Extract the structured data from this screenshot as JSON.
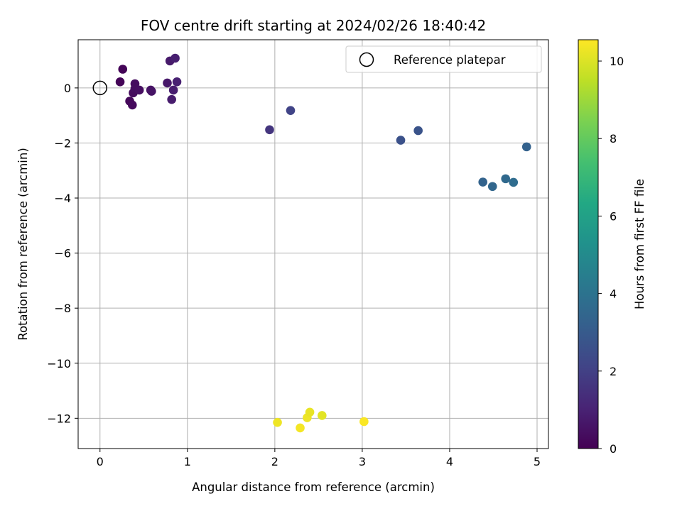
{
  "chart_data": {
    "type": "scatter",
    "title": "FOV centre drift starting at 2024/02/26 18:40:42",
    "xlabel": "Angular distance from reference (arcmin)",
    "ylabel": "Rotation from reference (arcmin)",
    "xlim": [
      -0.25,
      5.13
    ],
    "ylim": [
      -13.1,
      1.75
    ],
    "xticks": [
      0,
      1,
      2,
      3,
      4,
      5
    ],
    "yticks": [
      0,
      -2,
      -4,
      -6,
      -8,
      -10,
      -12
    ],
    "xtick_labels": [
      "0",
      "1",
      "2",
      "3",
      "4",
      "5"
    ],
    "ytick_labels": [
      "0",
      "−2",
      "−4",
      "−6",
      "−8",
      "−10",
      "−12"
    ],
    "grid": true,
    "colorbar": {
      "label": "Hours from first FF file",
      "colormap": "viridis",
      "range": [
        0,
        10.55
      ],
      "ticks": [
        0,
        2,
        4,
        6,
        8,
        10
      ],
      "tick_labels": [
        "0",
        "2",
        "4",
        "6",
        "8",
        "10"
      ]
    },
    "legend": {
      "position": "top-right",
      "entries": [
        {
          "label": "Reference platepar",
          "marker": "open-circle"
        }
      ]
    },
    "reference_point": {
      "x": 0,
      "y": 0
    },
    "points": [
      {
        "x": 0.23,
        "y": 0.22,
        "hours": 0.1
      },
      {
        "x": 0.26,
        "y": 0.68,
        "hours": 0.1
      },
      {
        "x": 0.34,
        "y": -0.48,
        "hours": 0.2
      },
      {
        "x": 0.37,
        "y": -0.62,
        "hours": 0.25
      },
      {
        "x": 0.38,
        "y": -0.18,
        "hours": 0.3
      },
      {
        "x": 0.4,
        "y": 0.15,
        "hours": 0.35
      },
      {
        "x": 0.4,
        "y": -0.02,
        "hours": 0.35
      },
      {
        "x": 0.45,
        "y": -0.08,
        "hours": 0.4
      },
      {
        "x": 0.58,
        "y": -0.08,
        "hours": 0.5
      },
      {
        "x": 0.59,
        "y": -0.12,
        "hours": 0.55
      },
      {
        "x": 0.77,
        "y": 0.18,
        "hours": 0.7
      },
      {
        "x": 0.8,
        "y": 0.98,
        "hours": 0.75
      },
      {
        "x": 0.82,
        "y": -0.42,
        "hours": 0.8
      },
      {
        "x": 0.84,
        "y": -0.08,
        "hours": 0.85
      },
      {
        "x": 0.86,
        "y": 1.08,
        "hours": 0.9
      },
      {
        "x": 0.88,
        "y": 0.22,
        "hours": 0.95
      },
      {
        "x": 1.94,
        "y": -1.52,
        "hours": 1.6
      },
      {
        "x": 2.18,
        "y": -0.82,
        "hours": 2.1
      },
      {
        "x": 3.44,
        "y": -1.9,
        "hours": 2.6
      },
      {
        "x": 3.64,
        "y": -1.55,
        "hours": 2.7
      },
      {
        "x": 4.38,
        "y": -3.42,
        "hours": 3.35
      },
      {
        "x": 4.49,
        "y": -3.58,
        "hours": 3.5
      },
      {
        "x": 4.64,
        "y": -3.3,
        "hours": 3.6
      },
      {
        "x": 4.73,
        "y": -3.43,
        "hours": 3.7
      },
      {
        "x": 4.88,
        "y": -2.14,
        "hours": 3.3
      },
      {
        "x": 2.03,
        "y": -12.15,
        "hours": 10.3
      },
      {
        "x": 2.29,
        "y": -12.35,
        "hours": 10.4
      },
      {
        "x": 2.37,
        "y": -11.98,
        "hours": 10.3
      },
      {
        "x": 2.4,
        "y": -11.78,
        "hours": 10.2
      },
      {
        "x": 2.54,
        "y": -11.9,
        "hours": 10.1
      },
      {
        "x": 3.02,
        "y": -12.12,
        "hours": 10.5
      }
    ]
  }
}
